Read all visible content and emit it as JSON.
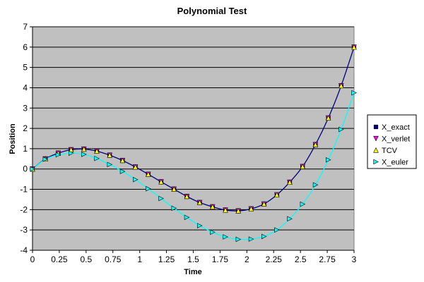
{
  "chart_data": {
    "type": "line",
    "title": "Polynomial Test",
    "xlabel": "Time",
    "ylabel": "Position",
    "xlim": [
      0,
      3
    ],
    "ylim": [
      -4,
      7
    ],
    "xticks": [
      "0",
      "0.25",
      "0.5",
      "0.75",
      "1",
      "1.25",
      "1.5",
      "1.75",
      "2",
      "2.25",
      "2.5",
      "2.75",
      "3"
    ],
    "yticks": [
      "-4",
      "-3",
      "-2",
      "-1",
      "0",
      "1",
      "2",
      "3",
      "4",
      "5",
      "6",
      "7"
    ],
    "grid": true,
    "legend_position": "right",
    "plot_background": "#c0c0c0",
    "series": [
      {
        "name": "X_exact",
        "color": "#000080",
        "marker": "square",
        "line": true,
        "x": [
          0,
          0.12,
          0.24,
          0.36,
          0.48,
          0.6,
          0.72,
          0.84,
          0.96,
          1.08,
          1.2,
          1.32,
          1.44,
          1.56,
          1.68,
          1.8,
          1.92,
          2.04,
          2.16,
          2.28,
          2.4,
          2.52,
          2.64,
          2.76,
          2.88,
          3.0
        ],
        "y": [
          0,
          0.5,
          0.78,
          0.95,
          0.98,
          0.88,
          0.68,
          0.42,
          0.1,
          -0.26,
          -0.63,
          -0.99,
          -1.35,
          -1.65,
          -1.86,
          -2.02,
          -2.06,
          -1.96,
          -1.72,
          -1.27,
          -0.65,
          0.12,
          1.2,
          2.51,
          4.1,
          6.0
        ]
      },
      {
        "name": "X_verlet",
        "color": "#ff00ff",
        "marker": "triangle-down",
        "line": false,
        "x": [
          0,
          0.12,
          0.24,
          0.36,
          0.48,
          0.6,
          0.72,
          0.84,
          0.96,
          1.08,
          1.2,
          1.32,
          1.44,
          1.56,
          1.68,
          1.8,
          1.92,
          2.04,
          2.16,
          2.28,
          2.4,
          2.52,
          2.64,
          2.76,
          2.88,
          3.0
        ],
        "y": [
          0,
          0.5,
          0.78,
          0.95,
          0.98,
          0.88,
          0.68,
          0.42,
          0.1,
          -0.26,
          -0.63,
          -0.99,
          -1.35,
          -1.65,
          -1.86,
          -2.02,
          -2.06,
          -1.96,
          -1.72,
          -1.27,
          -0.65,
          0.12,
          1.2,
          2.51,
          4.1,
          6.0
        ]
      },
      {
        "name": "TCV",
        "color": "#ffff00",
        "marker": "triangle-up",
        "line": false,
        "x": [
          0,
          0.12,
          0.24,
          0.36,
          0.48,
          0.6,
          0.72,
          0.84,
          0.96,
          1.08,
          1.2,
          1.32,
          1.44,
          1.56,
          1.68,
          1.8,
          1.92,
          2.04,
          2.16,
          2.28,
          2.4,
          2.52,
          2.64,
          2.76,
          2.88,
          3.0
        ],
        "y": [
          0,
          0.5,
          0.78,
          0.95,
          0.98,
          0.88,
          0.68,
          0.42,
          0.1,
          -0.26,
          -0.63,
          -0.99,
          -1.35,
          -1.65,
          -1.86,
          -2.02,
          -2.06,
          -1.96,
          -1.72,
          -1.27,
          -0.65,
          0.12,
          1.2,
          2.51,
          4.1,
          6.0
        ]
      },
      {
        "name": "X_euler",
        "color": "#00ffff",
        "marker": "triangle-right",
        "line": true,
        "x": [
          0,
          0.12,
          0.24,
          0.36,
          0.48,
          0.6,
          0.72,
          0.84,
          0.96,
          1.08,
          1.2,
          1.32,
          1.44,
          1.56,
          1.68,
          1.8,
          1.92,
          2.04,
          2.16,
          2.28,
          2.4,
          2.52,
          2.64,
          2.76,
          2.88,
          3.0
        ],
        "y": [
          0,
          0.48,
          0.7,
          0.78,
          0.72,
          0.52,
          0.22,
          -0.12,
          -0.52,
          -0.97,
          -1.45,
          -1.93,
          -2.38,
          -2.79,
          -3.11,
          -3.34,
          -3.46,
          -3.45,
          -3.32,
          -3.0,
          -2.45,
          -1.73,
          -0.78,
          0.45,
          1.95,
          3.75
        ]
      }
    ]
  }
}
